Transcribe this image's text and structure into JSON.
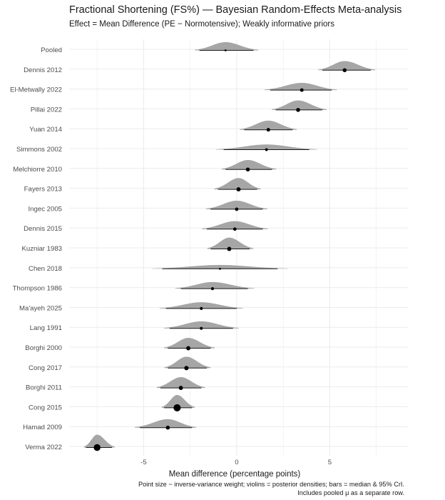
{
  "chart_data": {
    "type": "violin-forest",
    "title": "Fractional Shortening (FS%) — Bayesian Random-Effects Meta-analysis",
    "subtitle": "Effect = Mean Difference (PE − Normotensive); Weakly informative priors",
    "xlabel": "Mean difference (percentage points)",
    "caption_lines": [
      "Point size ~ inverse-variance weight; violins = posterior densities; bars = median & 95% CrI.",
      "Includes pooled μ as a separate row."
    ],
    "xlim": [
      -9.0,
      9.2
    ],
    "xticks": [
      -5,
      0,
      5
    ],
    "tick_labels": [
      "-5",
      "0",
      "5"
    ],
    "grid": true,
    "rows": [
      {
        "label": "Pooled",
        "median": -0.6,
        "lo": -2.0,
        "hi": 0.9,
        "weight": 0.5
      },
      {
        "label": "Dennis 2012",
        "median": 5.8,
        "lo": 4.6,
        "hi": 7.2,
        "weight": 1.0
      },
      {
        "label": "El-Metwally 2022",
        "median": 3.5,
        "lo": 1.8,
        "hi": 5.1,
        "weight": 0.9
      },
      {
        "label": "Pillai 2022",
        "median": 3.3,
        "lo": 2.1,
        "hi": 4.6,
        "weight": 1.0
      },
      {
        "label": "Yuan 2014",
        "median": 1.7,
        "lo": 0.4,
        "hi": 3.0,
        "weight": 0.9
      },
      {
        "label": "Simmons 2002",
        "median": 1.6,
        "lo": -0.7,
        "hi": 3.9,
        "weight": 0.7
      },
      {
        "label": "Melchiorre 2010",
        "median": 0.6,
        "lo": -0.6,
        "hi": 1.9,
        "weight": 1.0
      },
      {
        "label": "Fayers 2013",
        "median": 0.1,
        "lo": -1.0,
        "hi": 1.1,
        "weight": 1.05
      },
      {
        "label": "Ingec 2005",
        "median": 0.0,
        "lo": -1.4,
        "hi": 1.4,
        "weight": 0.85
      },
      {
        "label": "Dennis 2015",
        "median": -0.1,
        "lo": -1.6,
        "hi": 1.4,
        "weight": 0.85
      },
      {
        "label": "Kuzniar 1983",
        "median": -0.4,
        "lo": -1.4,
        "hi": 0.7,
        "weight": 1.05
      },
      {
        "label": "Chen 2018",
        "median": -0.9,
        "lo": -4.0,
        "hi": 2.2,
        "weight": 0.5
      },
      {
        "label": "Thompson 1986",
        "median": -1.3,
        "lo": -3.0,
        "hi": 0.6,
        "weight": 0.75
      },
      {
        "label": "Ma'ayeh 2025",
        "median": -1.9,
        "lo": -3.8,
        "hi": 0.0,
        "weight": 0.75
      },
      {
        "label": "Lang 1991",
        "median": -1.9,
        "lo": -3.6,
        "hi": -0.2,
        "weight": 0.75
      },
      {
        "label": "Borghi 2000",
        "median": -2.6,
        "lo": -3.7,
        "hi": -1.4,
        "weight": 1.05
      },
      {
        "label": "Cong 2017",
        "median": -2.7,
        "lo": -3.7,
        "hi": -1.6,
        "weight": 1.1
      },
      {
        "label": "Borghi 2011",
        "median": -3.0,
        "lo": -4.1,
        "hi": -1.9,
        "weight": 1.05
      },
      {
        "label": "Cong 2015",
        "median": -3.2,
        "lo": -3.9,
        "hi": -2.4,
        "weight": 1.8
      },
      {
        "label": "Hamad 2009",
        "median": -3.7,
        "lo": -5.2,
        "hi": -2.4,
        "weight": 1.0
      },
      {
        "label": "Verma 2022",
        "median": -7.5,
        "lo": -8.1,
        "hi": -6.7,
        "weight": 1.7
      }
    ]
  },
  "colors": {
    "violin": "#a6a6a6",
    "bar": "#1a1a1a",
    "point": "#000000",
    "grid": "#ebebeb"
  }
}
